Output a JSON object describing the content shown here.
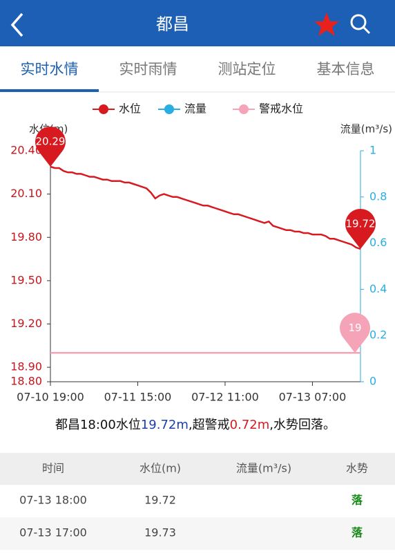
{
  "header": {
    "title": "都昌"
  },
  "tabs": [
    "实时水情",
    "实时雨情",
    "测站定位",
    "基本信息"
  ],
  "chart_data": {
    "type": "line",
    "y_label": "水位(m)",
    "y2_label": "流量(m³/s)",
    "x": [
      "07-10 19:00",
      "07-10 20:00",
      "07-10 21:00",
      "07-10 22:00",
      "07-10 23:00",
      "07-11 00:00",
      "07-11 01:00",
      "07-11 02:00",
      "07-11 03:00",
      "07-11 04:00",
      "07-11 05:00",
      "07-11 06:00",
      "07-11 07:00",
      "07-11 08:00",
      "07-11 09:00",
      "07-11 10:00",
      "07-11 11:00",
      "07-11 12:00",
      "07-11 13:00",
      "07-11 14:00",
      "07-11 15:00",
      "07-11 16:00",
      "07-11 17:00",
      "07-11 18:00",
      "07-11 19:00",
      "07-11 20:00",
      "07-11 21:00",
      "07-11 22:00",
      "07-11 23:00",
      "07-12 00:00",
      "07-12 01:00",
      "07-12 02:00",
      "07-12 03:00",
      "07-12 04:00",
      "07-12 05:00",
      "07-12 06:00",
      "07-12 07:00",
      "07-12 08:00",
      "07-12 09:00",
      "07-12 10:00",
      "07-12 11:00",
      "07-12 12:00",
      "07-12 13:00",
      "07-12 14:00",
      "07-12 15:00",
      "07-12 16:00",
      "07-12 17:00",
      "07-12 18:00",
      "07-12 19:00",
      "07-12 20:00",
      "07-12 21:00",
      "07-12 22:00",
      "07-12 23:00",
      "07-13 00:00",
      "07-13 01:00",
      "07-13 02:00",
      "07-13 03:00",
      "07-13 04:00",
      "07-13 05:00",
      "07-13 06:00",
      "07-13 07:00",
      "07-13 08:00",
      "07-13 09:00",
      "07-13 10:00",
      "07-13 11:00",
      "07-13 12:00",
      "07-13 13:00",
      "07-13 14:00",
      "07-13 15:00",
      "07-13 16:00",
      "07-13 17:00",
      "07-13 18:00"
    ],
    "series": [
      {
        "name": "水位",
        "color": "#d71920",
        "values": [
          20.29,
          20.28,
          20.28,
          20.26,
          20.25,
          20.25,
          20.24,
          20.24,
          20.23,
          20.22,
          20.22,
          20.21,
          20.2,
          20.2,
          20.19,
          20.19,
          20.19,
          20.18,
          20.18,
          20.17,
          20.16,
          20.15,
          20.14,
          20.11,
          20.07,
          20.09,
          20.1,
          20.09,
          20.08,
          20.08,
          20.07,
          20.06,
          20.05,
          20.04,
          20.03,
          20.02,
          20.02,
          20.01,
          20,
          19.99,
          19.98,
          19.97,
          19.96,
          19.96,
          19.95,
          19.94,
          19.93,
          19.92,
          19.91,
          19.9,
          19.91,
          19.88,
          19.87,
          19.86,
          19.85,
          19.85,
          19.84,
          19.84,
          19.83,
          19.83,
          19.82,
          19.82,
          19.82,
          19.81,
          19.79,
          19.79,
          19.78,
          19.77,
          19.76,
          19.75,
          19.73,
          19.72
        ]
      },
      {
        "name": "流量",
        "color": "#29aee3",
        "axis": "y2",
        "values": [
          null,
          null,
          null,
          null,
          null,
          null,
          null,
          null,
          null,
          null,
          null,
          null,
          null,
          null,
          null,
          null,
          null,
          null,
          null,
          null,
          null,
          null,
          null,
          null,
          null,
          null,
          null,
          null,
          null,
          null,
          null,
          null,
          null,
          null,
          null,
          null,
          null,
          null,
          null,
          null,
          null,
          null,
          null,
          null,
          null,
          null,
          null,
          null,
          null,
          null,
          null,
          null,
          null,
          null,
          null,
          null,
          null,
          null,
          null,
          null,
          null,
          null,
          null,
          null,
          null,
          null,
          null,
          null,
          null,
          null,
          null,
          null
        ]
      },
      {
        "name": "警戒水位",
        "color": "#f5a3b7",
        "value": 19
      }
    ],
    "xlim": [
      "07-10 19:00",
      "07-13 18:00"
    ],
    "xticks": [
      "07-10 19:00",
      "07-11 15:00",
      "07-12 11:00",
      "07-13 07:00"
    ],
    "ylim": [
      18.8,
      20.4
    ],
    "yticks": [
      {
        "value": 18.8,
        "label": "18.80"
      },
      {
        "value": 18.9,
        "label": "18.90"
      },
      {
        "value": 19.2,
        "label": "19.20"
      },
      {
        "value": 19.5,
        "label": "19.50"
      },
      {
        "value": 19.8,
        "label": "19.80"
      },
      {
        "value": 20.1,
        "label": "20.10"
      },
      {
        "value": 20.4,
        "label": "20.40"
      }
    ],
    "y2lim": [
      0,
      1
    ],
    "y2ticks": [
      0,
      0.2,
      0.4,
      0.6,
      0.8,
      1
    ],
    "grid": false
  },
  "summary": [
    {
      "text": "都昌18:00水位",
      "color": "#111"
    },
    {
      "text": "19.72m",
      "color": "#1a3fb0"
    },
    {
      "text": ",超警戒",
      "color": "#111"
    },
    {
      "text": "0.72m",
      "color": "#d71920"
    },
    {
      "text": ",水势回落。",
      "color": "#111"
    }
  ],
  "table": {
    "headers": [
      "时间",
      "水位(m)",
      "流量(m³/s)",
      "水势"
    ],
    "rows": [
      {
        "time": "07-13 18:00",
        "level": 19.72,
        "trend": "落"
      },
      {
        "time": "07-13 17:00",
        "level": 19.73,
        "trend": "落"
      }
    ]
  }
}
